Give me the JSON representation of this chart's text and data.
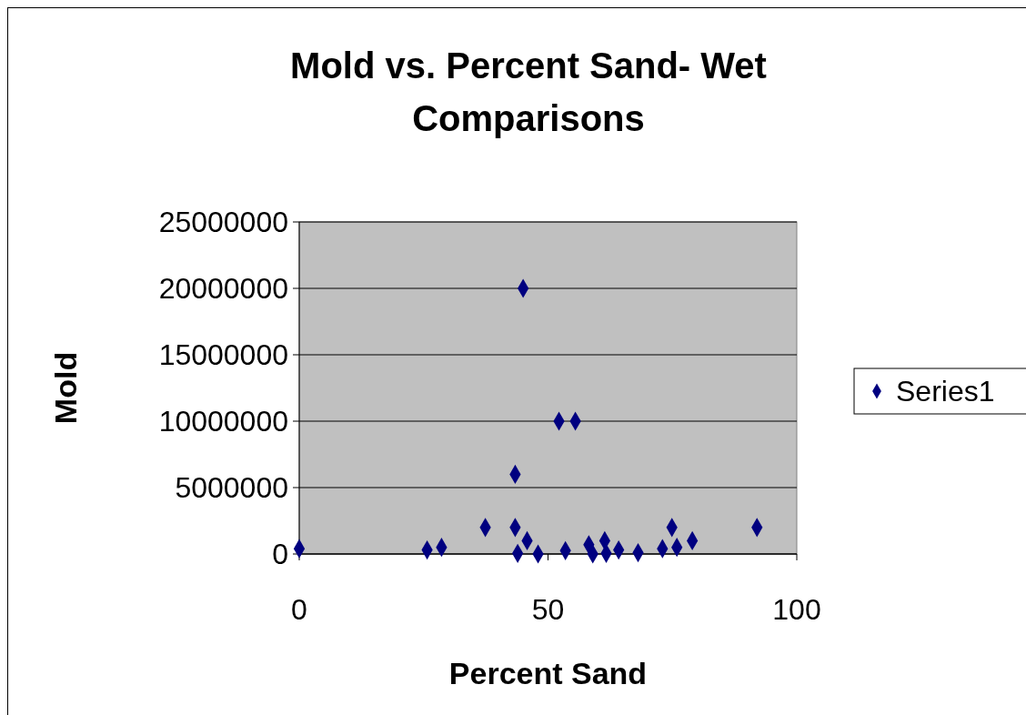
{
  "chart_data": {
    "type": "scatter",
    "title": "Mold vs. Percent Sand- Wet Comparisons",
    "xlabel": "Percent Sand",
    "ylabel": "Mold",
    "xlim": [
      0,
      100
    ],
    "xticks": [
      0,
      50,
      100
    ],
    "ylim": [
      0,
      25000000
    ],
    "yticks": [
      0,
      5000000,
      10000000,
      15000000,
      20000000,
      25000000
    ],
    "grid": "y",
    "legend": "right",
    "marker": "diamond",
    "series": [
      {
        "name": "Series1",
        "color": "#000080",
        "x": [
          0,
          25.7,
          28.6,
          37.4,
          43.4,
          43.9,
          45.8,
          48,
          53.5,
          58.2,
          59,
          61.4,
          61.7,
          64.2,
          68.1,
          73,
          74.9,
          75.9,
          79,
          92,
          45,
          52.2,
          55.5,
          43.4
        ],
        "values": [
          400000,
          300000,
          500000,
          2000000,
          2000000,
          50000,
          1000000,
          0,
          250000,
          700000,
          0,
          1000000,
          50000,
          300000,
          100000,
          400000,
          2000000,
          500000,
          1000000,
          2000000,
          20000000,
          10000000,
          10000000,
          6000000
        ]
      }
    ]
  }
}
